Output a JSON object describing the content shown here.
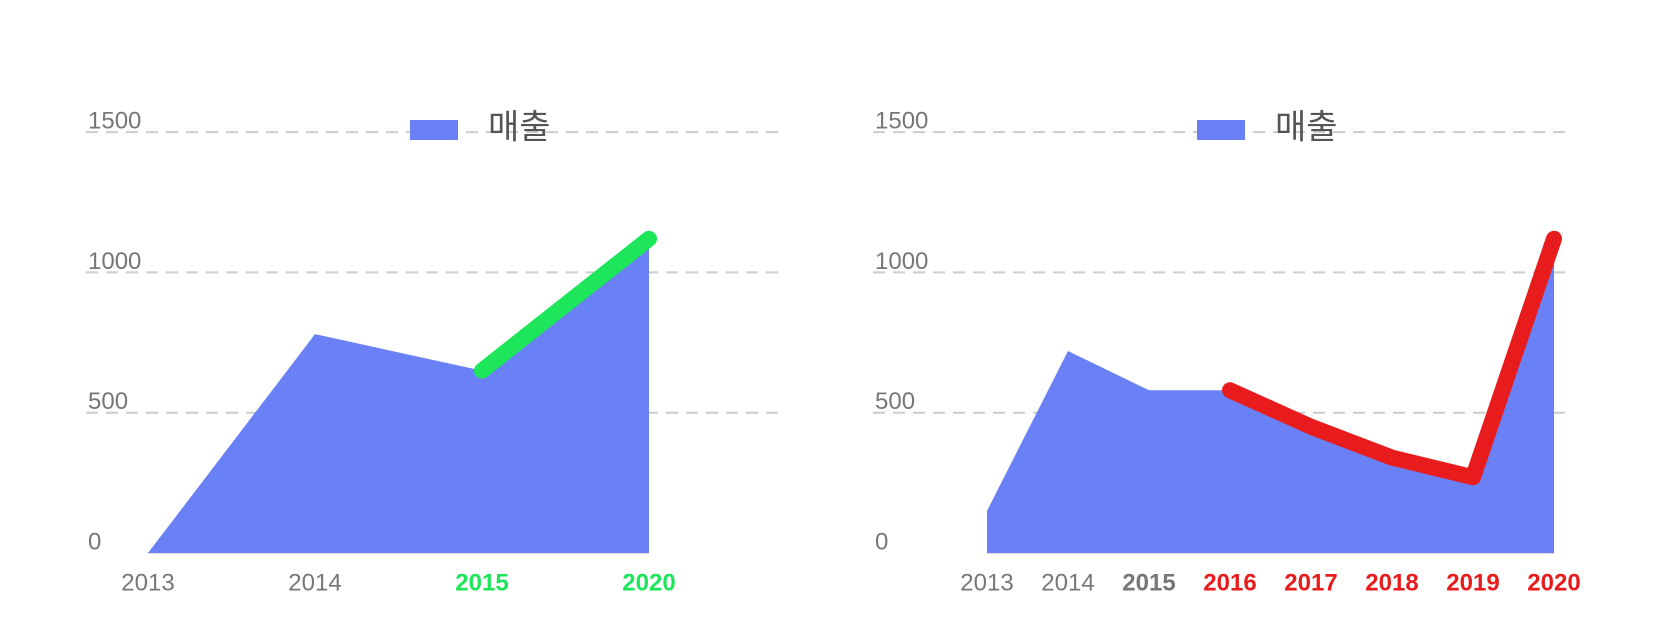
{
  "chart_data": [
    {
      "type": "area",
      "categories": [
        "2013",
        "2014",
        "2015",
        "2020"
      ],
      "series": [
        {
          "name": "매출",
          "color": "#6a80f5",
          "values": [
            0,
            780,
            650,
            1120
          ]
        }
      ],
      "ylim": [
        0,
        1750
      ],
      "yticks": [
        0,
        500,
        1000,
        1500
      ],
      "grid": true,
      "highlight": {
        "color": "#1de65a",
        "from": 2
      },
      "bold_from": 2
    },
    {
      "type": "area",
      "categories": [
        "2013",
        "2014",
        "2015",
        "2016",
        "2017",
        "2018",
        "2019",
        "2020"
      ],
      "series": [
        {
          "name": "매출",
          "color": "#6a80f5",
          "values": [
            150,
            720,
            580,
            580,
            450,
            340,
            270,
            1120
          ]
        }
      ],
      "ylim": [
        0,
        1750
      ],
      "yticks": [
        0,
        500,
        1000,
        1500
      ],
      "grid": true,
      "highlight": {
        "color": "#e81c1c",
        "from": 3
      },
      "bold_from": 2
    }
  ]
}
